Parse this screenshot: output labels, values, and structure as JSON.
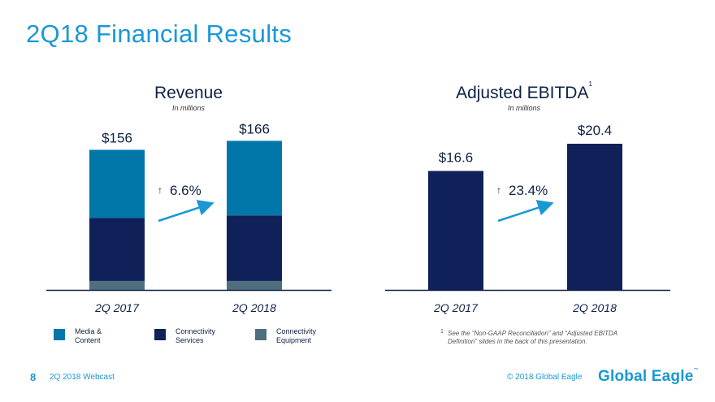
{
  "page": {
    "title": "2Q18 Financial Results",
    "page_number": "8",
    "footer_left": "2Q 2018 Webcast",
    "footer_right": "© 2018 Global Eagle",
    "logo_text": "Global Eagle",
    "logo_tm": "™"
  },
  "colors": {
    "media_content": "#0077a8",
    "connectivity_services": "#0f2158",
    "connectivity_equipment": "#4f6f7f",
    "accent": "#1a98d5",
    "axis": "#0f2144"
  },
  "legend": [
    {
      "label_line1": "Media &",
      "label_line2": "Content",
      "color": "#0077a8"
    },
    {
      "label_line1": "Connectivity",
      "label_line2": "Services",
      "color": "#0f2158"
    },
    {
      "label_line1": "Connectivity",
      "label_line2": "Equipment",
      "color": "#4f6f7f"
    }
  ],
  "footnote": {
    "marker": "1",
    "text": "See the “Non-GAAP Reconciliation” and “Adjusted EBITDA Definition” slides in the back of this presentation."
  },
  "chart_data": [
    {
      "type": "bar",
      "stacked": true,
      "title": "Revenue",
      "subtitle": "In millions",
      "categories": [
        "2Q 2017",
        "2Q 2018"
      ],
      "series": [
        {
          "name": "Connectivity Equipment",
          "values": [
            10,
            10
          ]
        },
        {
          "name": "Connectivity Services",
          "values": [
            70,
            73
          ]
        },
        {
          "name": "Media & Content",
          "values": [
            76,
            83
          ]
        }
      ],
      "totals": [
        156,
        166
      ],
      "total_labels": [
        "$156",
        "$166"
      ],
      "growth_label": "6.6%",
      "ylim": [
        0,
        170
      ]
    },
    {
      "type": "bar",
      "title": "Adjusted EBITDA",
      "title_sup": "1",
      "subtitle": "In millions",
      "categories": [
        "2Q 2017",
        "2Q 2018"
      ],
      "values": [
        16.6,
        20.4
      ],
      "value_labels": [
        "$16.6",
        "$20.4"
      ],
      "growth_label": "23.4%",
      "ylim": [
        0,
        20.4
      ]
    }
  ]
}
